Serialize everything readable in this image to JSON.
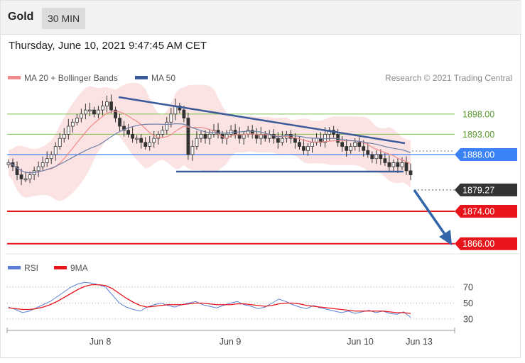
{
  "header": {
    "instrument": "Gold",
    "timeframe": "30 MIN"
  },
  "datetime": "Thursday, June 10, 2021 9:47:45 AM CET",
  "legend": {
    "ma20": "MA 20 + Bollinger Bands",
    "ma50": "MA 50",
    "credit": "Research © 2021 Trading Central"
  },
  "rsi_legend": {
    "rsi": "RSI",
    "ma9": "9MA"
  },
  "colors": {
    "ma20": "#f08a8a",
    "ma50": "#3b5a9a",
    "resistance": "#7cbf4a",
    "pivot": "#3b82f6",
    "support": "#e8141c",
    "current": "#333333",
    "arrow": "#3266a8",
    "rsi": "#5b7fd6",
    "rsi_ma": "#e8141c"
  },
  "chart_data": [
    {
      "type": "candlestick",
      "x_ticks": [
        "Jun 8",
        "Jun 9",
        "Jun 10",
        "Jun 13"
      ],
      "ylim": [
        1864,
        1904
      ],
      "levels": [
        {
          "value": 1898.0,
          "label": "1898.00",
          "kind": "resistance"
        },
        {
          "value": 1893.0,
          "label": "1893.00",
          "kind": "resistance"
        },
        {
          "value": 1888.0,
          "label": "1888.00",
          "kind": "pivot"
        },
        {
          "value": 1879.27,
          "label": "1879.27",
          "kind": "current"
        },
        {
          "value": 1874.0,
          "label": "1874.00",
          "kind": "support"
        },
        {
          "value": 1866.0,
          "label": "1866.00",
          "kind": "support"
        }
      ],
      "series": [
        {
          "values": [
            1886,
            1885,
            1883,
            1882,
            1882,
            1883,
            1884,
            1885,
            1886,
            1887,
            1888,
            1890,
            1892,
            1893,
            1895,
            1896,
            1897,
            1898,
            1899,
            1899,
            1898,
            1899,
            1900,
            1901,
            1899,
            1897,
            1895,
            1894,
            1893,
            1892,
            1892,
            1891,
            1890,
            1891,
            1892,
            1893,
            1894,
            1896,
            1898,
            1900,
            1899,
            1897,
            1888,
            1890,
            1892,
            1893,
            1892,
            1893,
            1894,
            1893,
            1892,
            1893,
            1894,
            1893,
            1892,
            1893,
            1894,
            1893,
            1892,
            1893,
            1892,
            1893,
            1892,
            1891,
            1892,
            1893,
            1892,
            1891,
            1890,
            1889,
            1890,
            1891,
            1892,
            1891,
            1893,
            1894,
            1893,
            1891,
            1890,
            1889,
            1890,
            1891,
            1890,
            1889,
            1888,
            1887,
            1888,
            1887,
            1886,
            1885,
            1886,
            1885,
            1886,
            1884,
            1883
          ]
        }
      ]
    },
    {
      "type": "line",
      "ylim": [
        20,
        80
      ],
      "y_ticks": [
        "70",
        "50",
        "30"
      ],
      "series": [
        {
          "name": "RSI",
          "values": [
            45,
            42,
            38,
            40,
            44,
            48,
            52,
            58,
            64,
            70,
            74,
            76,
            75,
            73,
            70,
            60,
            50,
            45,
            42,
            40,
            45,
            48,
            50,
            47,
            45,
            48,
            50,
            52,
            48,
            46,
            44,
            47,
            50,
            52,
            48,
            46,
            43,
            45,
            50,
            55,
            52,
            48,
            45,
            43,
            47,
            44,
            42,
            40,
            38,
            40,
            37,
            39,
            41,
            38,
            40,
            37,
            36,
            39,
            32
          ]
        },
        {
          "name": "9MA",
          "values": [
            44,
            43,
            42,
            42,
            43,
            45,
            48,
            52,
            57,
            62,
            67,
            71,
            73,
            73,
            72,
            68,
            62,
            56,
            51,
            47,
            45,
            46,
            47,
            48,
            48,
            48,
            49,
            50,
            50,
            49,
            48,
            48,
            48,
            49,
            49,
            48,
            47,
            46,
            47,
            49,
            50,
            50,
            49,
            47,
            46,
            45,
            44,
            43,
            42,
            41,
            40,
            40,
            40,
            40,
            40,
            39,
            38,
            38,
            37
          ]
        }
      ]
    }
  ]
}
